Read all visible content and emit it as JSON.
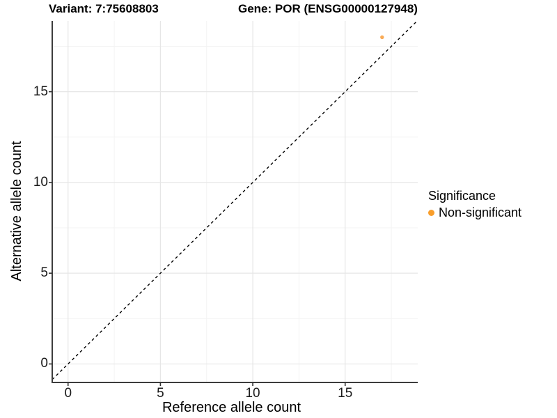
{
  "chart_data": {
    "type": "scatter",
    "title_left": "Variant: 7:75608803",
    "title_right": "Gene: POR (ENSG00000127948)",
    "xlabel": "Reference allele count",
    "ylabel": "Alternative allele count",
    "xlim": [
      -0.857,
      18.93
    ],
    "ylim": [
      -1.02,
      18.9
    ],
    "x_ticks": [
      0,
      5,
      10,
      15
    ],
    "y_ticks": [
      0,
      5,
      10,
      15
    ],
    "x_minor_ticks": [
      2.5,
      7.5,
      12.5,
      17.5
    ],
    "y_minor_ticks": [
      2.5,
      7.5,
      12.5,
      17.5
    ],
    "grid": true,
    "points": [
      {
        "x": 17,
        "y": 18,
        "series": "Non-significant"
      }
    ],
    "identity_line": {
      "slope": 1,
      "intercept": 0,
      "style": "dashed"
    },
    "legend": {
      "title": "Significance",
      "position": "right",
      "items": [
        {
          "label": "Non-significant",
          "color": "#F99E2B"
        }
      ]
    },
    "colors": {
      "point": "#F9A64E",
      "grid_major": "#e6e6e6",
      "grid_minor": "#f3f3f3",
      "axis": "#3c3c3c",
      "tick": "#333333",
      "diagonal": "#000000"
    }
  }
}
